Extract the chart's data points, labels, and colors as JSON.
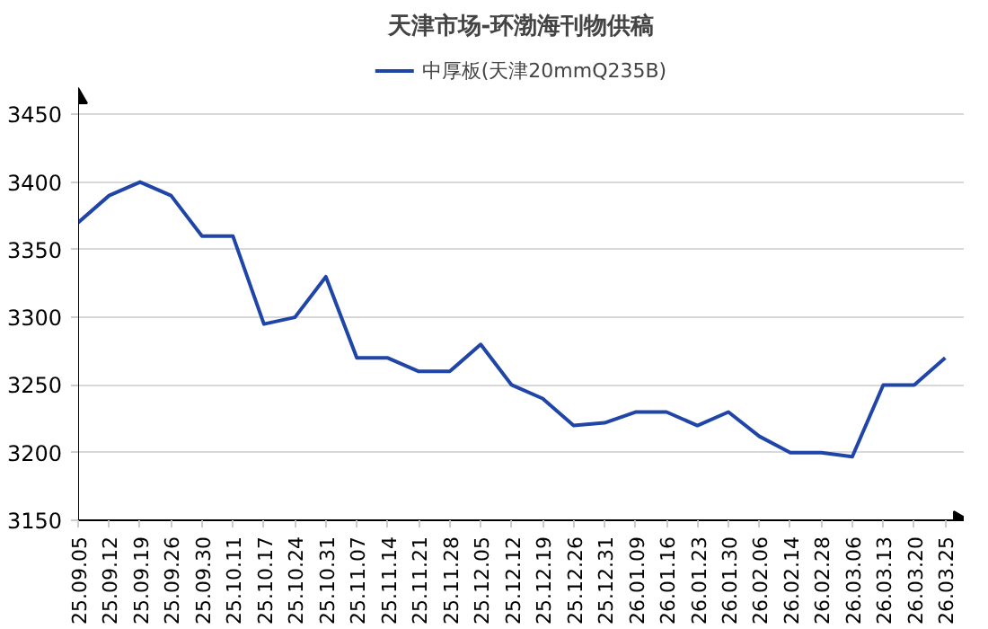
{
  "chart_data": {
    "type": "line",
    "title": "天津市场-环渤海刊物供稿",
    "categories": [
      "25.09.05",
      "25.09.12",
      "25.09.19",
      "25.09.26",
      "25.09.30",
      "25.10.11",
      "25.10.17",
      "25.10.24",
      "25.10.31",
      "25.11.07",
      "25.11.14",
      "25.11.21",
      "25.11.28",
      "25.12.05",
      "25.12.12",
      "25.12.19",
      "25.12.26",
      "25.12.31",
      "26.01.09",
      "26.01.16",
      "26.01.23",
      "26.01.30",
      "26.02.06",
      "26.02.14",
      "26.02.28",
      "26.03.06",
      "26.03.13",
      "26.03.20",
      "26.03.25"
    ],
    "series": [
      {
        "name": "中厚板(天津20mmQ235B)",
        "color": "#1f45a8",
        "values": [
          3370,
          3390,
          3400,
          3390,
          3360,
          3360,
          3295,
          3300,
          3330,
          3270,
          3270,
          3260,
          3260,
          3280,
          3250,
          3240,
          3220,
          3222,
          3230,
          3230,
          3220,
          3230,
          3212,
          3200,
          3200,
          3197,
          3250,
          3250,
          3270
        ]
      }
    ],
    "ylim": [
      3150,
      3450
    ],
    "yticks": [
      3150,
      3200,
      3250,
      3300,
      3350,
      3400,
      3450
    ],
    "grid": "y",
    "legend": "top",
    "marker": "none",
    "line_style": "solid"
  }
}
